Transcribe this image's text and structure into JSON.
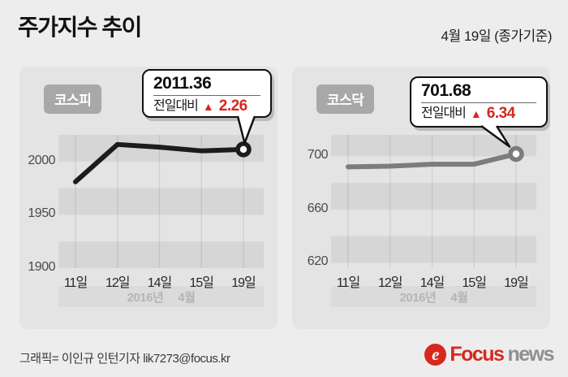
{
  "header": {
    "title": "주가지수 추이",
    "date_note": "4월 19일 (종가기준)"
  },
  "colors": {
    "page_bg": "#ededed",
    "panel_bg": "#e4e4e4",
    "stripe_light": "#e4e4e4",
    "stripe_dark": "#d6d6d6",
    "grid_line": "rgba(0,0,0,0.08)",
    "badge_bg": "#a8a8a8",
    "accent_red": "#d6281e",
    "kospi_line": "#1c1c1c",
    "kosdaq_line": "#7c7c7c",
    "band_bg": "#dbdbdb",
    "band_text": "#b5b5b5"
  },
  "chart_data": [
    {
      "type": "line",
      "title": "코스피",
      "categories": [
        "11일",
        "12일",
        "14일",
        "15일",
        "19일"
      ],
      "values": [
        1981,
        2016,
        2013.5,
        2010,
        2011.36
      ],
      "ylim": [
        1900,
        2025
      ],
      "yticks": [
        2000,
        1950,
        1900
      ],
      "stripe_dark_bands": [
        [
          2000,
          2025
        ],
        [
          1950,
          1975
        ],
        [
          1900,
          1925
        ]
      ],
      "line_color": "#1c1c1c",
      "xlabel": "",
      "ylabel": "",
      "legend_position": "none",
      "period_label": {
        "year": "2016년",
        "month": "4월"
      },
      "callout": {
        "value": "2011.36",
        "change_label": "전일대비",
        "change_symbol": "▲",
        "change_value": "2.26"
      }
    },
    {
      "type": "line",
      "title": "코스닥",
      "categories": [
        "11일",
        "12일",
        "14일",
        "15일",
        "19일"
      ],
      "values": [
        692,
        692.5,
        694,
        694,
        701.68
      ],
      "ylim": [
        616,
        716
      ],
      "yticks": [
        700,
        660,
        620
      ],
      "stripe_dark_bands": [
        [
          700,
          716
        ],
        [
          660,
          680
        ],
        [
          620,
          640
        ]
      ],
      "line_color": "#7c7c7c",
      "xlabel": "",
      "ylabel": "",
      "legend_position": "none",
      "period_label": {
        "year": "2016년",
        "month": "4월"
      },
      "callout": {
        "value": "701.68",
        "change_label": "전일대비",
        "change_symbol": "▲",
        "change_value": "6.34"
      }
    }
  ],
  "footer": {
    "credit": "그래픽= 이인규 인턴기자 lik7273@focus.kr",
    "logo": {
      "emblem_letter": "e",
      "brand_red": "Focus",
      "brand_gray": "news"
    }
  }
}
